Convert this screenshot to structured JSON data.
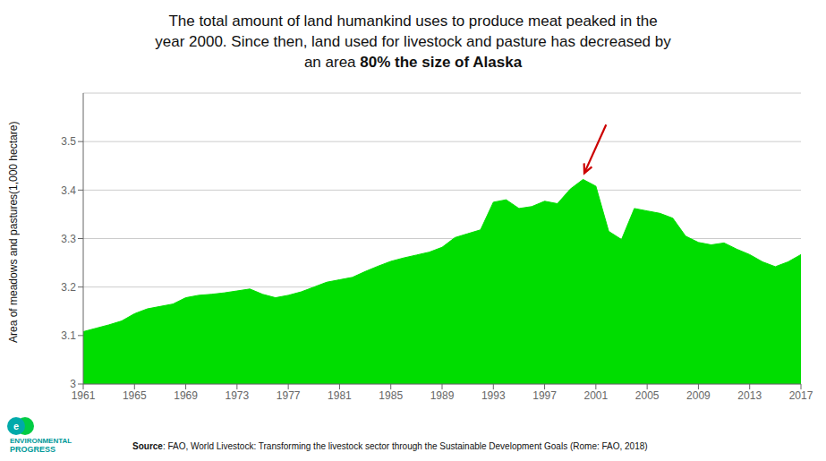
{
  "chart_data": {
    "type": "area",
    "title": [
      "The total amount of land humankind uses to produce meat peaked in the",
      "year 2000. Since then, land used for livestock and pasture has decreased by",
      "an area 80% the size of Alaska"
    ],
    "title_bold": "80% the size of Alaska",
    "y_label": [
      "Area of meadows and pastures",
      "(1,000 hectare)"
    ],
    "source": "Source: FAO, World Livestock: Transforming the livestock sector through the Sustainable Development Goals (Rome: FAO, 2018)",
    "source_bold": "Source",
    "logo_text": [
      "e",
      "ENVIRONMENTAL",
      "PROGRESS"
    ],
    "color": "#00dd00",
    "grid": true,
    "x": [
      1961,
      1962,
      1963,
      1964,
      1965,
      1966,
      1967,
      1968,
      1969,
      1970,
      1971,
      1972,
      1973,
      1974,
      1975,
      1976,
      1977,
      1978,
      1979,
      1980,
      1981,
      1982,
      1983,
      1984,
      1985,
      1986,
      1987,
      1988,
      1989,
      1990,
      1991,
      1992,
      1993,
      1994,
      1995,
      1996,
      1997,
      1998,
      1999,
      2000,
      2001,
      2002,
      2003,
      2004,
      2005,
      2006,
      2007,
      2008,
      2009,
      2010,
      2011,
      2012,
      2013,
      2014,
      2015,
      2016,
      2017
    ],
    "values": [
      3.108,
      3.115,
      3.122,
      3.13,
      3.145,
      3.155,
      3.16,
      3.165,
      3.178,
      3.183,
      3.185,
      3.188,
      3.192,
      3.196,
      3.185,
      3.178,
      3.183,
      3.19,
      3.2,
      3.21,
      3.215,
      3.22,
      3.232,
      3.243,
      3.253,
      3.26,
      3.266,
      3.272,
      3.282,
      3.302,
      3.31,
      3.318,
      3.375,
      3.38,
      3.362,
      3.366,
      3.377,
      3.372,
      3.402,
      3.422,
      3.408,
      3.315,
      3.298,
      3.362,
      3.357,
      3.352,
      3.342,
      3.305,
      3.292,
      3.287,
      3.291,
      3.278,
      3.267,
      3.252,
      3.242,
      3.252,
      3.267
    ],
    "xlim": [
      1961,
      2017
    ],
    "xticks": [
      1961,
      1965,
      1969,
      1973,
      1977,
      1981,
      1985,
      1989,
      1993,
      1997,
      2001,
      2005,
      2009,
      2013,
      2017
    ],
    "ylim": [
      3,
      3.6
    ],
    "yticks": [
      3,
      3.1,
      3.2,
      3.3,
      3.4,
      3.5
    ],
    "annotations": [
      {
        "type": "arrow",
        "from": [
          2001.8,
          3.535
        ],
        "to": [
          2000.1,
          3.435
        ],
        "color": "#cc0000"
      }
    ]
  }
}
